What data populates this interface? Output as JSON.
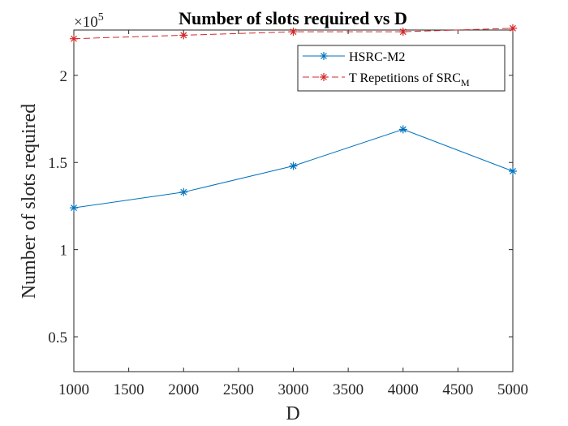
{
  "chart_data": {
    "type": "line",
    "title": "Number of slots required vs D",
    "xlabel": "D",
    "ylabel": "Number of slots required",
    "y_exponent_base": "×10",
    "y_exponent_power": "5",
    "xlim": [
      1000,
      5000
    ],
    "ylim": [
      0.3,
      2.26
    ],
    "x_ticks": [
      1000,
      1500,
      2000,
      2500,
      3000,
      3500,
      4000,
      4500,
      5000
    ],
    "y_ticks": [
      0.5,
      1,
      1.5,
      2
    ],
    "y_tick_labels": [
      "0.5",
      "1",
      "1.5",
      "2"
    ],
    "x": [
      1000,
      2000,
      3000,
      4000,
      5000
    ],
    "series": [
      {
        "name": "HSRC-M2",
        "color": "#0072BD",
        "line_style": "solid",
        "marker": "asterisk",
        "values": [
          1.24,
          1.33,
          1.48,
          1.69,
          1.45
        ]
      },
      {
        "name": "T Repetitions of SRC",
        "name_subscript": "M",
        "color": "#D62728",
        "line_style": "dashed",
        "marker": "asterisk",
        "values": [
          2.21,
          2.23,
          2.25,
          2.25,
          2.27
        ]
      }
    ],
    "legend_position": "top-right",
    "grid": false
  }
}
